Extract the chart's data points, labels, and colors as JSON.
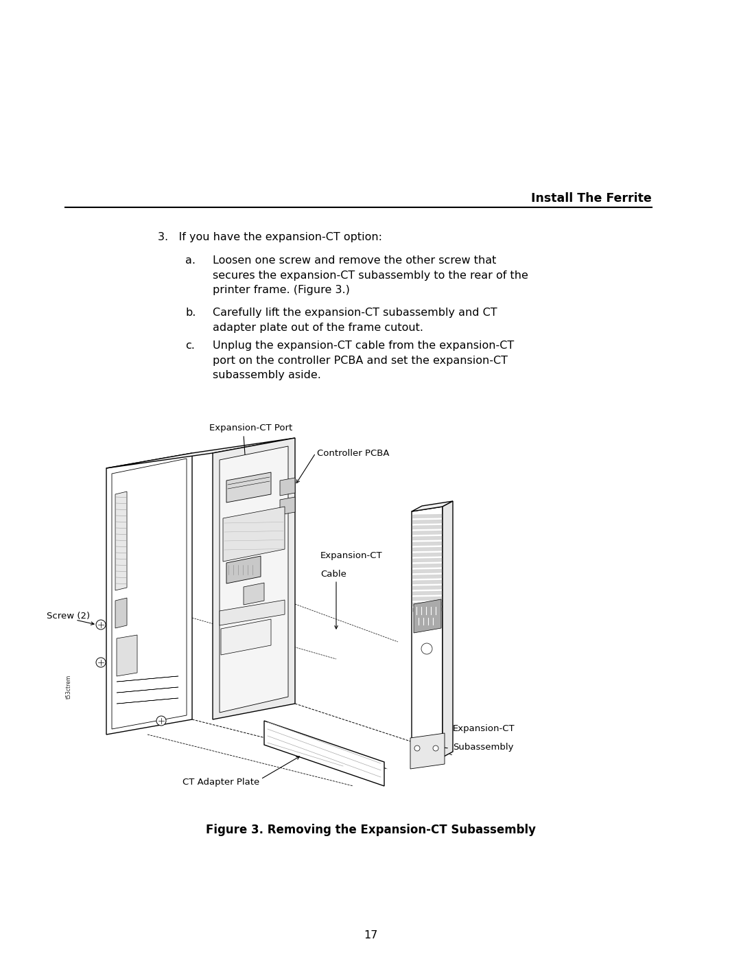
{
  "background_color": "#ffffff",
  "page_width": 10.8,
  "page_height": 13.97,
  "header_title": "Install The Ferrite",
  "step3_text": "3.   If you have the expansion-CT option:",
  "step_a_label": "a.",
  "step_a_text": "Loosen one screw and remove the other screw that\nsecures the expansion-CT subassembly to the rear of the\nprinter frame. (Figure 3.)",
  "step_b_label": "b.",
  "step_b_text": "Carefully lift the expansion-CT subassembly and CT\nadapter plate out of the frame cutout.",
  "step_c_label": "c.",
  "step_c_text": "Unplug the expansion-CT cable from the expansion-CT\nport on the controller PCBA and set the expansion-CT\nsubassembly aside.",
  "figure_caption": "Figure 3. Removing the Expansion-CT Subassembly",
  "page_number": "17",
  "font_size_body": 11.5,
  "font_size_header": 12.5,
  "font_size_caption": 12,
  "font_size_page": 11.5,
  "text_color": "#000000",
  "line_color": "#000000",
  "label_fontsize": 9.5
}
